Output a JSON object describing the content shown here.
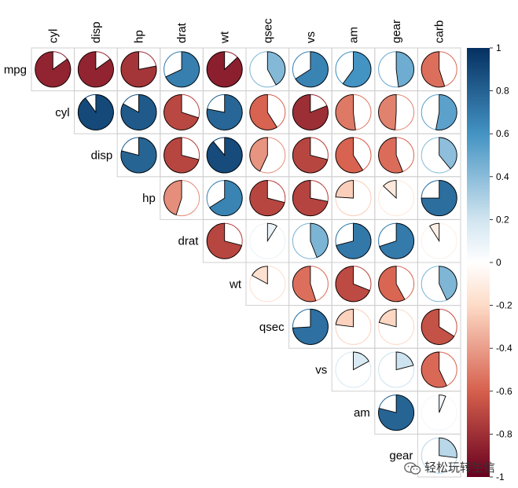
{
  "chart_data": {
    "type": "correlation-pie-matrix",
    "variables": [
      "mpg",
      "cyl",
      "disp",
      "hp",
      "drat",
      "wt",
      "qsec",
      "vs",
      "am",
      "gear",
      "carb"
    ],
    "triangle": "upper",
    "diagonal": false,
    "correlations": [
      [
        1.0,
        -0.85,
        -0.85,
        -0.78,
        0.68,
        -0.87,
        0.42,
        0.66,
        0.6,
        0.48,
        -0.55
      ],
      [
        -0.85,
        1.0,
        0.9,
        0.83,
        -0.7,
        0.78,
        -0.59,
        -0.81,
        -0.52,
        -0.49,
        0.53
      ],
      [
        -0.85,
        0.9,
        1.0,
        0.79,
        -0.71,
        0.89,
        -0.43,
        -0.71,
        -0.59,
        -0.56,
        0.39
      ],
      [
        -0.78,
        0.83,
        0.79,
        1.0,
        -0.45,
        0.66,
        -0.71,
        -0.72,
        -0.24,
        -0.13,
        0.75
      ],
      [
        0.68,
        -0.7,
        -0.71,
        -0.45,
        1.0,
        -0.71,
        0.09,
        0.44,
        0.71,
        0.7,
        -0.09
      ],
      [
        -0.87,
        0.78,
        0.89,
        0.66,
        -0.71,
        1.0,
        -0.17,
        -0.55,
        -0.69,
        -0.58,
        0.43
      ],
      [
        0.42,
        -0.59,
        -0.43,
        -0.71,
        0.09,
        -0.17,
        1.0,
        0.74,
        -0.23,
        -0.21,
        -0.66
      ],
      [
        0.66,
        -0.81,
        -0.71,
        -0.72,
        0.44,
        -0.55,
        0.74,
        1.0,
        0.17,
        0.21,
        -0.57
      ],
      [
        0.6,
        -0.52,
        -0.59,
        -0.24,
        0.71,
        -0.69,
        -0.23,
        0.17,
        1.0,
        0.79,
        0.06
      ],
      [
        0.48,
        -0.49,
        -0.56,
        -0.13,
        0.7,
        -0.58,
        -0.21,
        0.21,
        0.79,
        1.0,
        0.27
      ],
      [
        -0.55,
        0.53,
        0.39,
        0.75,
        -0.09,
        0.43,
        -0.66,
        -0.57,
        0.06,
        0.27,
        1.0
      ]
    ],
    "colorbar": {
      "range": [
        -1,
        1
      ],
      "ticks": [
        "1",
        "0.8",
        "0.6",
        "0.4",
        "0.2",
        "0",
        "-0.2",
        "-0.4",
        "-0.6",
        "-0.8",
        "-1"
      ],
      "colors": {
        "neg_dark": "#67001f",
        "neg_mid": "#d6604d",
        "neg_light": "#fddbc7",
        "zero": "#ffffff",
        "pos_light": "#d1e5f0",
        "pos_mid": "#4393c3",
        "pos_dark": "#053061"
      }
    },
    "grid": true
  },
  "watermark": {
    "text": "轻松玩转生信",
    "icon": "wechat-icon"
  }
}
